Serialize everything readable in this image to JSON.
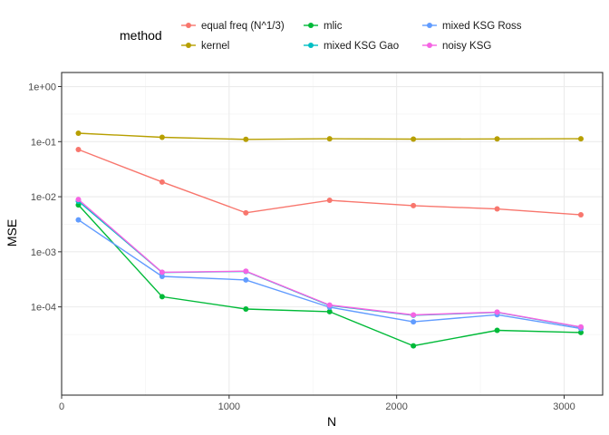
{
  "chart_data": {
    "type": "line",
    "xlabel": "N",
    "ylabel": "MSE",
    "x": [
      100,
      600,
      1100,
      1600,
      2100,
      2600,
      3100
    ],
    "xlim": [
      0,
      3230
    ],
    "ylim": [
      2.5e-06,
      1.8
    ],
    "log_y": true,
    "grid": true,
    "legend_title": "method",
    "legend_position": "top",
    "x_ticks": [
      0,
      1000,
      2000,
      3000
    ],
    "x_tick_labels": [
      "0",
      "1000",
      "2000",
      "3000"
    ],
    "y_ticks": [
      0.0001,
      0.001,
      0.01,
      0.1,
      1
    ],
    "y_tick_labels": [
      "1e-04",
      "1e-03",
      "1e-02",
      "1e-01",
      "1e+00"
    ],
    "series": [
      {
        "name": "equal freq (N^1/3)",
        "color": "#F8766D",
        "values": [
          0.072,
          0.0185,
          0.0051,
          0.0086,
          0.0069,
          0.006,
          0.0047
        ]
      },
      {
        "name": "kernel",
        "color": "#B79F00",
        "values": [
          0.142,
          0.12,
          0.11,
          0.113,
          0.111,
          0.112,
          0.113
        ]
      },
      {
        "name": "mlic",
        "color": "#00BA38",
        "values": [
          0.0071,
          0.000153,
          9.15e-05,
          8.2e-05,
          1.96e-05,
          3.75e-05,
          3.43e-05
        ]
      },
      {
        "name": "mixed KSG Gao",
        "color": "#00BFC4",
        "values": [
          0.0083,
          0.00042,
          0.00044,
          0.000106,
          7.05e-05,
          7.95e-05,
          4.27e-05
        ]
      },
      {
        "name": "mixed KSG Ross",
        "color": "#619CFF",
        "values": [
          0.0038,
          0.000358,
          0.000308,
          9.85e-05,
          5.35e-05,
          7.2e-05,
          4.05e-05
        ]
      },
      {
        "name": "noisy KSG",
        "color": "#F564E3",
        "values": [
          0.0089,
          0.000425,
          0.000445,
          0.000108,
          7.15e-05,
          8.05e-05,
          4.32e-05
        ]
      }
    ]
  }
}
